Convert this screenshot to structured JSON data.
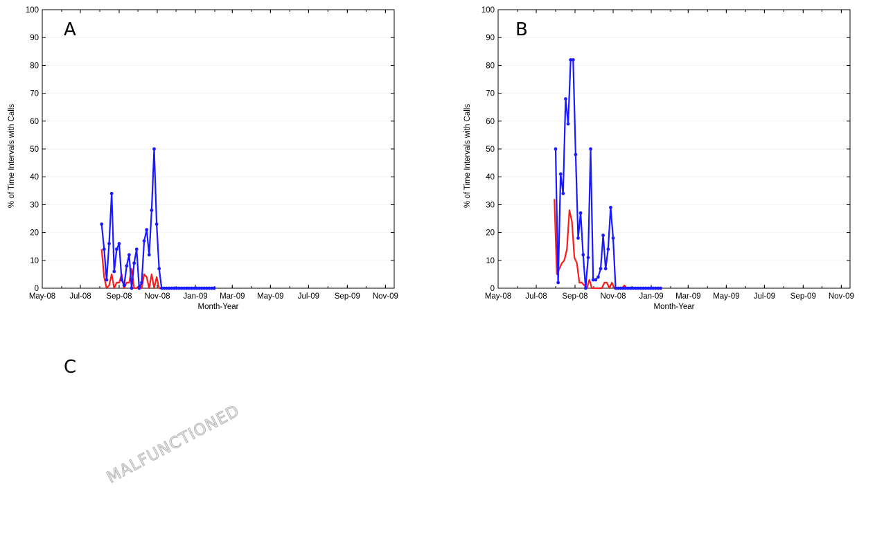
{
  "figure": {
    "panel_c_letter": "C",
    "stamp_text": "MALFUNCTIONED"
  },
  "colors": {
    "series_blue": "#1a1aff",
    "series_red": "#ff1a1a",
    "axis": "#000000",
    "grid": "#c8c8c8"
  },
  "chart_data": [
    {
      "type": "line",
      "panel": "A",
      "xlabel": "Month-Year",
      "ylabel": "% of Time Intervals with Calls",
      "xlim": [
        "2008-05-01",
        "2009-11-15"
      ],
      "ylim": [
        0,
        100
      ],
      "yticks": [
        "0",
        "10",
        "20",
        "30",
        "40",
        "50",
        "60",
        "70",
        "80",
        "90",
        "100"
      ],
      "xticks": [
        {
          "label": "May-08",
          "date": "2008-05-01"
        },
        {
          "label": "Jul-08",
          "date": "2008-07-01"
        },
        {
          "label": "Sep-08",
          "date": "2008-09-01"
        },
        {
          "label": "Nov-08",
          "date": "2008-11-01"
        },
        {
          "label": "Jan-09",
          "date": "2009-01-01"
        },
        {
          "label": "Mar-09",
          "date": "2009-03-01"
        },
        {
          "label": "May-09",
          "date": "2009-05-01"
        },
        {
          "label": "Jul-09",
          "date": "2009-07-01"
        },
        {
          "label": "Sep-09",
          "date": "2009-09-01"
        },
        {
          "label": "Nov-09",
          "date": "2009-11-01"
        }
      ],
      "series": [
        {
          "color": "#1a1aff",
          "markers": true,
          "x": [
            "2008-08-04",
            "2008-08-08",
            "2008-08-12",
            "2008-08-16",
            "2008-08-20",
            "2008-08-24",
            "2008-08-28",
            "2008-09-01",
            "2008-09-05",
            "2008-09-09",
            "2008-09-13",
            "2008-09-17",
            "2008-09-21",
            "2008-09-25",
            "2008-09-29",
            "2008-10-03",
            "2008-10-07",
            "2008-10-11",
            "2008-10-15",
            "2008-10-19",
            "2008-10-23",
            "2008-10-27",
            "2008-10-31",
            "2008-11-04",
            "2008-11-08",
            "2008-11-12",
            "2008-11-16",
            "2008-11-20",
            "2008-11-24",
            "2008-11-28",
            "2008-12-02",
            "2008-12-06",
            "2008-12-10",
            "2008-12-14",
            "2008-12-18",
            "2008-12-22",
            "2008-12-26",
            "2008-12-30",
            "2009-01-03",
            "2009-01-07",
            "2009-01-11",
            "2009-01-15",
            "2009-01-19",
            "2009-01-23",
            "2009-01-27",
            "2009-01-31"
          ],
          "y": [
            23,
            14,
            3,
            16,
            34,
            6,
            14,
            16,
            3,
            1,
            8,
            12,
            0,
            9,
            14,
            0,
            2,
            17,
            21,
            12,
            28,
            50,
            23,
            7,
            0,
            0,
            0,
            0,
            0,
            0,
            0,
            0,
            0,
            0,
            0,
            0,
            0,
            0,
            0,
            0,
            0,
            0,
            0,
            0,
            0,
            0
          ]
        },
        {
          "color": "#ff1a1a",
          "markers": false,
          "x": [
            "2008-08-04",
            "2008-08-08",
            "2008-08-12",
            "2008-08-16",
            "2008-08-20",
            "2008-08-24",
            "2008-08-28",
            "2008-09-01",
            "2008-09-05",
            "2008-09-09",
            "2008-09-13",
            "2008-09-17",
            "2008-09-21",
            "2008-09-25",
            "2008-09-29",
            "2008-10-03",
            "2008-10-07",
            "2008-10-11",
            "2008-10-15",
            "2008-10-19",
            "2008-10-23",
            "2008-10-27",
            "2008-10-31",
            "2008-11-04",
            "2008-11-08",
            "2008-11-12",
            "2008-11-16",
            "2008-11-20",
            "2008-11-24",
            "2008-11-28",
            "2008-12-02",
            "2008-12-06",
            "2008-12-10",
            "2008-12-14",
            "2008-12-18",
            "2008-12-22",
            "2008-12-26",
            "2008-12-30",
            "2009-01-03",
            "2009-01-07",
            "2009-01-11",
            "2009-01-15",
            "2009-01-19",
            "2009-01-23",
            "2009-01-27",
            "2009-01-31"
          ],
          "y": [
            14,
            4,
            0,
            1,
            5,
            0,
            2,
            2,
            5,
            0,
            2,
            2,
            7,
            0,
            0,
            1,
            0,
            5,
            4,
            0,
            5,
            0,
            4,
            0,
            0,
            0,
            0,
            0,
            0,
            0,
            0,
            0,
            0,
            0,
            0,
            0,
            0,
            0,
            0,
            0,
            0,
            0,
            0,
            0,
            0,
            0
          ]
        }
      ]
    },
    {
      "type": "line",
      "panel": "B",
      "xlabel": "Month-Year",
      "ylabel": "% of Time Intervals with Calls",
      "xlim": [
        "2008-05-01",
        "2009-11-15"
      ],
      "ylim": [
        0,
        100
      ],
      "yticks": [
        "0",
        "10",
        "20",
        "30",
        "40",
        "50",
        "60",
        "70",
        "80",
        "90",
        "100"
      ],
      "xticks": [
        {
          "label": "May-08",
          "date": "2008-05-01"
        },
        {
          "label": "Jul-08",
          "date": "2008-07-01"
        },
        {
          "label": "Sep-08",
          "date": "2008-09-01"
        },
        {
          "label": "Nov-08",
          "date": "2008-11-01"
        },
        {
          "label": "Jan-09",
          "date": "2009-01-01"
        },
        {
          "label": "Mar-09",
          "date": "2009-03-01"
        },
        {
          "label": "May-09",
          "date": "2009-05-01"
        },
        {
          "label": "Jul-09",
          "date": "2009-07-01"
        },
        {
          "label": "Sep-09",
          "date": "2009-09-01"
        },
        {
          "label": "Nov-09",
          "date": "2009-11-01"
        }
      ],
      "series": [
        {
          "color": "#1a1aff",
          "markers": true,
          "x": [
            "2008-08-01",
            "2008-08-05",
            "2008-08-09",
            "2008-08-13",
            "2008-08-17",
            "2008-08-21",
            "2008-08-25",
            "2008-08-29",
            "2008-09-02",
            "2008-09-06",
            "2008-09-10",
            "2008-09-14",
            "2008-09-18",
            "2008-09-22",
            "2008-09-26",
            "2008-09-30",
            "2008-10-04",
            "2008-10-08",
            "2008-10-12",
            "2008-10-16",
            "2008-10-20",
            "2008-10-24",
            "2008-10-28",
            "2008-11-01",
            "2008-11-05",
            "2008-11-09",
            "2008-11-13",
            "2008-11-17",
            "2008-11-21",
            "2008-11-25",
            "2008-11-29",
            "2008-12-03",
            "2008-12-07",
            "2008-12-11",
            "2008-12-15",
            "2008-12-19",
            "2008-12-23",
            "2008-12-27",
            "2008-12-31",
            "2009-01-04",
            "2009-01-08",
            "2009-01-12",
            "2009-01-16"
          ],
          "y": [
            50,
            2,
            41,
            34,
            68,
            59,
            82,
            82,
            48,
            18,
            27,
            12,
            0,
            11,
            50,
            3,
            3,
            4,
            7,
            19,
            7,
            14,
            29,
            18,
            0,
            0,
            0,
            0,
            0,
            0,
            0,
            0,
            0,
            0,
            0,
            0,
            0,
            0,
            0,
            0,
            0,
            0,
            0
          ]
        },
        {
          "color": "#ff1a1a",
          "markers": false,
          "x": [
            "2008-07-30",
            "2008-08-03",
            "2008-08-07",
            "2008-08-11",
            "2008-08-15",
            "2008-08-19",
            "2008-08-23",
            "2008-08-27",
            "2008-08-31",
            "2008-09-04",
            "2008-09-08",
            "2008-09-12",
            "2008-09-16",
            "2008-09-20",
            "2008-09-24",
            "2008-09-28",
            "2008-10-02",
            "2008-10-06",
            "2008-10-10",
            "2008-10-14",
            "2008-10-18",
            "2008-10-22",
            "2008-10-26",
            "2008-10-30",
            "2008-11-03",
            "2008-11-07",
            "2008-11-11",
            "2008-11-15",
            "2008-11-19",
            "2008-11-23",
            "2008-11-27",
            "2008-12-01",
            "2008-12-05",
            "2008-12-09",
            "2008-12-13",
            "2008-12-17",
            "2008-12-21",
            "2008-12-25",
            "2008-12-29",
            "2009-01-02",
            "2009-01-06",
            "2009-01-10",
            "2009-01-14"
          ],
          "y": [
            32,
            5,
            7,
            9,
            10,
            14,
            28,
            24,
            11,
            9,
            2,
            2,
            1,
            0,
            3,
            0,
            0,
            0,
            0,
            0,
            2,
            2,
            0,
            2,
            0,
            0,
            0,
            0,
            1,
            0,
            0,
            0,
            0,
            0,
            0,
            0,
            0,
            0,
            0,
            0,
            0,
            0,
            0
          ]
        }
      ]
    }
  ]
}
